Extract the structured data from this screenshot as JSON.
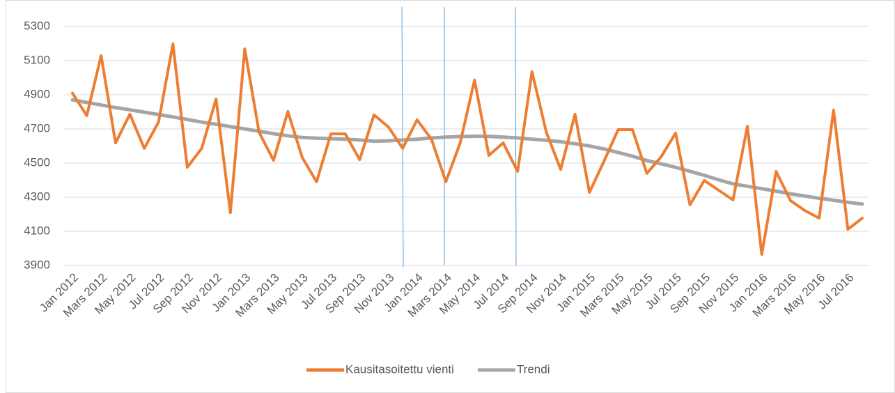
{
  "chart_data": {
    "type": "line",
    "categories": [
      "Jan 2012",
      null,
      "Mars 2012",
      null,
      "May 2012",
      null,
      "Jul 2012",
      null,
      "Sep 2012",
      null,
      "Nov 2012",
      null,
      "Jan 2013",
      null,
      "Mars 2013",
      null,
      "May 2013",
      null,
      "Jul 2013",
      null,
      "Sep 2013",
      null,
      "Nov 2013",
      null,
      "Jan 2014",
      null,
      "Mars 2014",
      null,
      "May 2014",
      null,
      "Jul 2014",
      null,
      "Sep 2014",
      null,
      "Nov 2014",
      null,
      "Jan 2015",
      null,
      "Mars 2015",
      null,
      "May 2015",
      null,
      "Jul 2015",
      null,
      "Sep 2015",
      null,
      "Nov 2015",
      null,
      "Jan 2016",
      null,
      "Mars 2016",
      null,
      "May 2016",
      null,
      "Jul 2016",
      null
    ],
    "series": [
      {
        "name": "Kausitasoitettu vienti",
        "color": "#ed7d31",
        "values": [
          4910,
          4778,
          5129,
          4618,
          4786,
          4586,
          4741,
          5198,
          4475,
          4586,
          4875,
          4210,
          5169,
          4680,
          4516,
          4802,
          4533,
          4390,
          4671,
          4671,
          4520,
          4782,
          4712,
          4586,
          4753,
          4639,
          4390,
          4618,
          4986,
          4545,
          4618,
          4451,
          5035,
          4680,
          4463,
          4786,
          4328,
          4508,
          4696,
          4696,
          4439,
          4537,
          4675,
          4255,
          4398,
          4341,
          4284,
          4716,
          3965,
          4451,
          4280,
          4222,
          4177,
          4810,
          4112,
          4177
        ]
      },
      {
        "name": "Trendi",
        "color": "#a5a5a5",
        "values": [
          4870,
          4855,
          4840,
          4825,
          4812,
          4798,
          4784,
          4770,
          4755,
          4740,
          4727,
          4714,
          4700,
          4686,
          4672,
          4660,
          4650,
          4646,
          4643,
          4640,
          4635,
          4628,
          4630,
          4635,
          4640,
          4647,
          4652,
          4655,
          4657,
          4656,
          4652,
          4647,
          4640,
          4633,
          4625,
          4613,
          4600,
          4583,
          4562,
          4540,
          4515,
          4495,
          4475,
          4452,
          4428,
          4402,
          4378,
          4364,
          4350,
          4335,
          4320,
          4307,
          4294,
          4282,
          4270,
          4260
        ]
      }
    ],
    "ylim": [
      3900,
      5300
    ],
    "yticks": [
      3900,
      4100,
      4300,
      4500,
      4700,
      4900,
      5100,
      5300
    ],
    "grid": true,
    "legend": "bottom"
  }
}
